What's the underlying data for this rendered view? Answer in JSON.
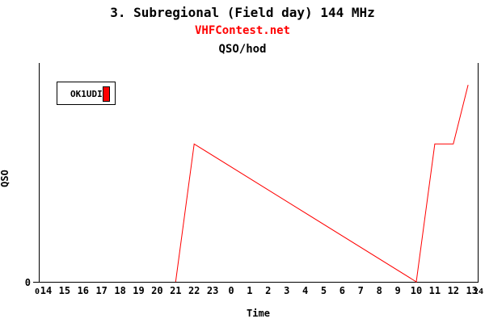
{
  "header": {
    "title": "3. Subregional (Field day) 144 MHz",
    "site": "VHFContest.net",
    "metric": "QSO/hod",
    "title_color": "#000000",
    "site_color": "#ff0000"
  },
  "chart": {
    "xlabel": "Time",
    "ylabel": "QSO",
    "axis_color": "#000000",
    "background": "#ffffff",
    "legend": {
      "label": "OK1UDI",
      "swatch_color": "#ff0000"
    }
  },
  "chart_data": {
    "type": "line",
    "title": "3. Subregional (Field day) 144 MHz",
    "subtitle": "VHFContest.net",
    "metric": "QSO/hod",
    "xlabel": "Time",
    "ylabel": "QSO",
    "x_hour_labels": [
      "14",
      "15",
      "16",
      "17",
      "18",
      "19",
      "20",
      "21",
      "22",
      "23",
      "0",
      "1",
      "2",
      "3",
      "4",
      "5",
      "6",
      "7",
      "8",
      "9",
      "10",
      "11",
      "12",
      "13"
    ],
    "x_edge_labels": [
      "0",
      "24"
    ],
    "y_tick_labels": [
      "0"
    ],
    "xlim_hours_from_start": [
      0,
      24
    ],
    "ylim_relative": [
      0,
      1
    ],
    "grid": false,
    "legend_position": "top-left-inside",
    "series": [
      {
        "name": "OK1UDI",
        "color": "#ff0000",
        "points": [
          {
            "hours_from_1400": 7,
            "local_time": "21",
            "value_relative": 0
          },
          {
            "hours_from_1400": 8,
            "local_time": "22",
            "value_relative": 0.63
          },
          {
            "hours_from_1400": 20,
            "local_time": "10",
            "value_relative": 0
          },
          {
            "hours_from_1400": 21,
            "local_time": "11",
            "value_relative": 0.63
          },
          {
            "hours_from_1400": 22,
            "local_time": "12",
            "value_relative": 0.63
          },
          {
            "hours_from_1400": 22.8,
            "local_time": "13",
            "value_relative": 0.9
          }
        ]
      }
    ],
    "note": "Only 0 is labeled on the QSO axis; values are fractions of the visible axis height. X axis runs 24 h from 14:00 to 14:00 (edge labels 0 and 24)."
  }
}
